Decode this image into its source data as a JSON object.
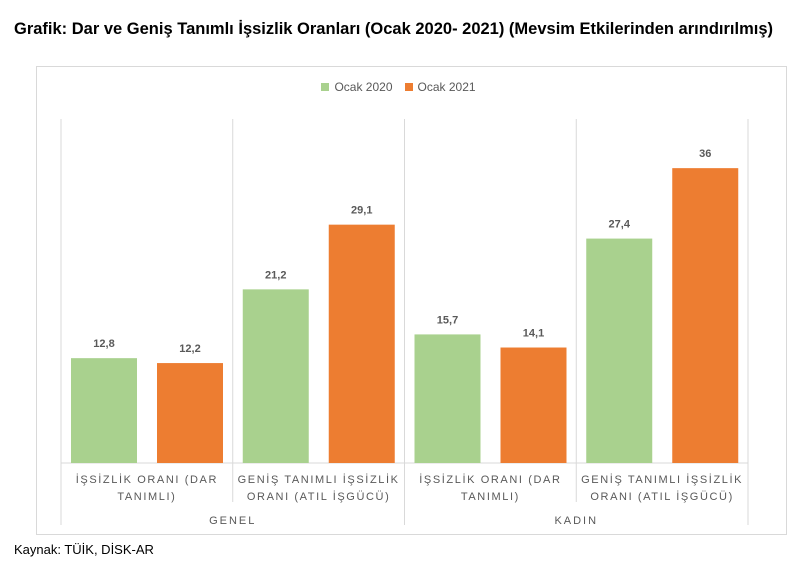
{
  "title": "Grafik: Dar ve Geniş Tanımlı İşsizlik Oranları (Ocak 2020- 2021) (Mevsim Etkilerinden arındırılmış)",
  "source": "Kaynak: TÜİK, DİSK-AR",
  "chart_data": {
    "type": "bar",
    "groups": [
      {
        "label": "GENEL",
        "categories": [
          {
            "lines": [
              "İŞSİZLİK ORANI (DAR",
              "TANIMLI)"
            ]
          },
          {
            "lines": [
              "GENİŞ TANIMLI İŞSİZLİK",
              "ORANI (ATIL İŞGÜCÜ)"
            ]
          }
        ]
      },
      {
        "label": "KADIN",
        "categories": [
          {
            "lines": [
              "İŞSİZLİK ORANI (DAR",
              "TANIMLI)"
            ]
          },
          {
            "lines": [
              "GENİŞ TANIMLI İŞSİZLİK",
              "ORANI (ATIL İŞGÜCÜ)"
            ]
          }
        ]
      }
    ],
    "series": [
      {
        "name": "Ocak 2020",
        "color": "#a9d18e",
        "values": [
          12.8,
          21.2,
          15.7,
          27.4
        ],
        "labels": [
          "12,8",
          "21,2",
          "15,7",
          "27,4"
        ]
      },
      {
        "name": "Ocak 2021",
        "color": "#ed7d31",
        "values": [
          12.2,
          29.1,
          14.1,
          36
        ],
        "labels": [
          "12,2",
          "29,1",
          "14,1",
          "36"
        ]
      }
    ],
    "ylim": [
      0,
      42
    ],
    "legend_position": "top"
  }
}
